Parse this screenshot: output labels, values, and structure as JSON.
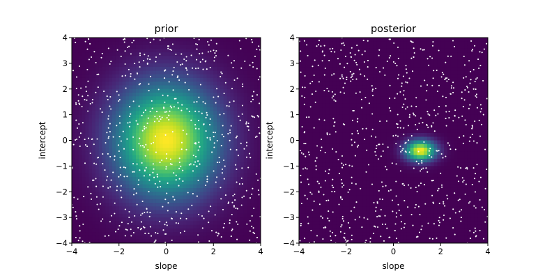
{
  "chart_data": [
    {
      "type": "heatmap",
      "title": "prior",
      "xlabel": "slope",
      "ylabel": "intercept",
      "xlim": [
        -4,
        4
      ],
      "ylim": [
        -4,
        4
      ],
      "xticks": [
        -4,
        -2,
        0,
        2,
        4
      ],
      "yticks": [
        -4,
        -3,
        -2,
        -1,
        0,
        1,
        2,
        3,
        4
      ],
      "xtick_labels": [
        "−4",
        "−2",
        "0",
        "2",
        "4"
      ],
      "ytick_labels": [
        "−4",
        "−3",
        "−2",
        "−1",
        "0",
        "1",
        "2",
        "3",
        "4"
      ],
      "colormap": "viridis",
      "density": {
        "center": [
          0.0,
          0.0
        ],
        "sigma": [
          1.5,
          1.5
        ],
        "value_range": [
          0.0,
          1.0
        ]
      },
      "scatter": {
        "n_points": 700,
        "color": "#ffffff",
        "distribution": "uniform",
        "seed": 11
      },
      "grid": false
    },
    {
      "type": "heatmap",
      "title": "posterior",
      "xlabel": "slope",
      "ylabel": "intercept",
      "xlim": [
        -4,
        4
      ],
      "ylim": [
        -4,
        4
      ],
      "xticks": [
        -4,
        -2,
        0,
        2,
        4
      ],
      "yticks": [
        -4,
        -3,
        -2,
        -1,
        0,
        1,
        2,
        3,
        4
      ],
      "xtick_labels": [
        "−4",
        "−2",
        "0",
        "2",
        "4"
      ],
      "ytick_labels": [
        "−4",
        "−3",
        "−2",
        "−1",
        "0",
        "1",
        "2",
        "3",
        "4"
      ],
      "colormap": "viridis",
      "density": {
        "center": [
          1.15,
          -0.4
        ],
        "sigma": [
          0.45,
          0.28
        ],
        "value_range": [
          0.0,
          1.0
        ]
      },
      "scatter": {
        "n_points": 700,
        "color": "#ffffff",
        "distribution": "uniform",
        "seed": 29
      },
      "grid": false
    }
  ]
}
